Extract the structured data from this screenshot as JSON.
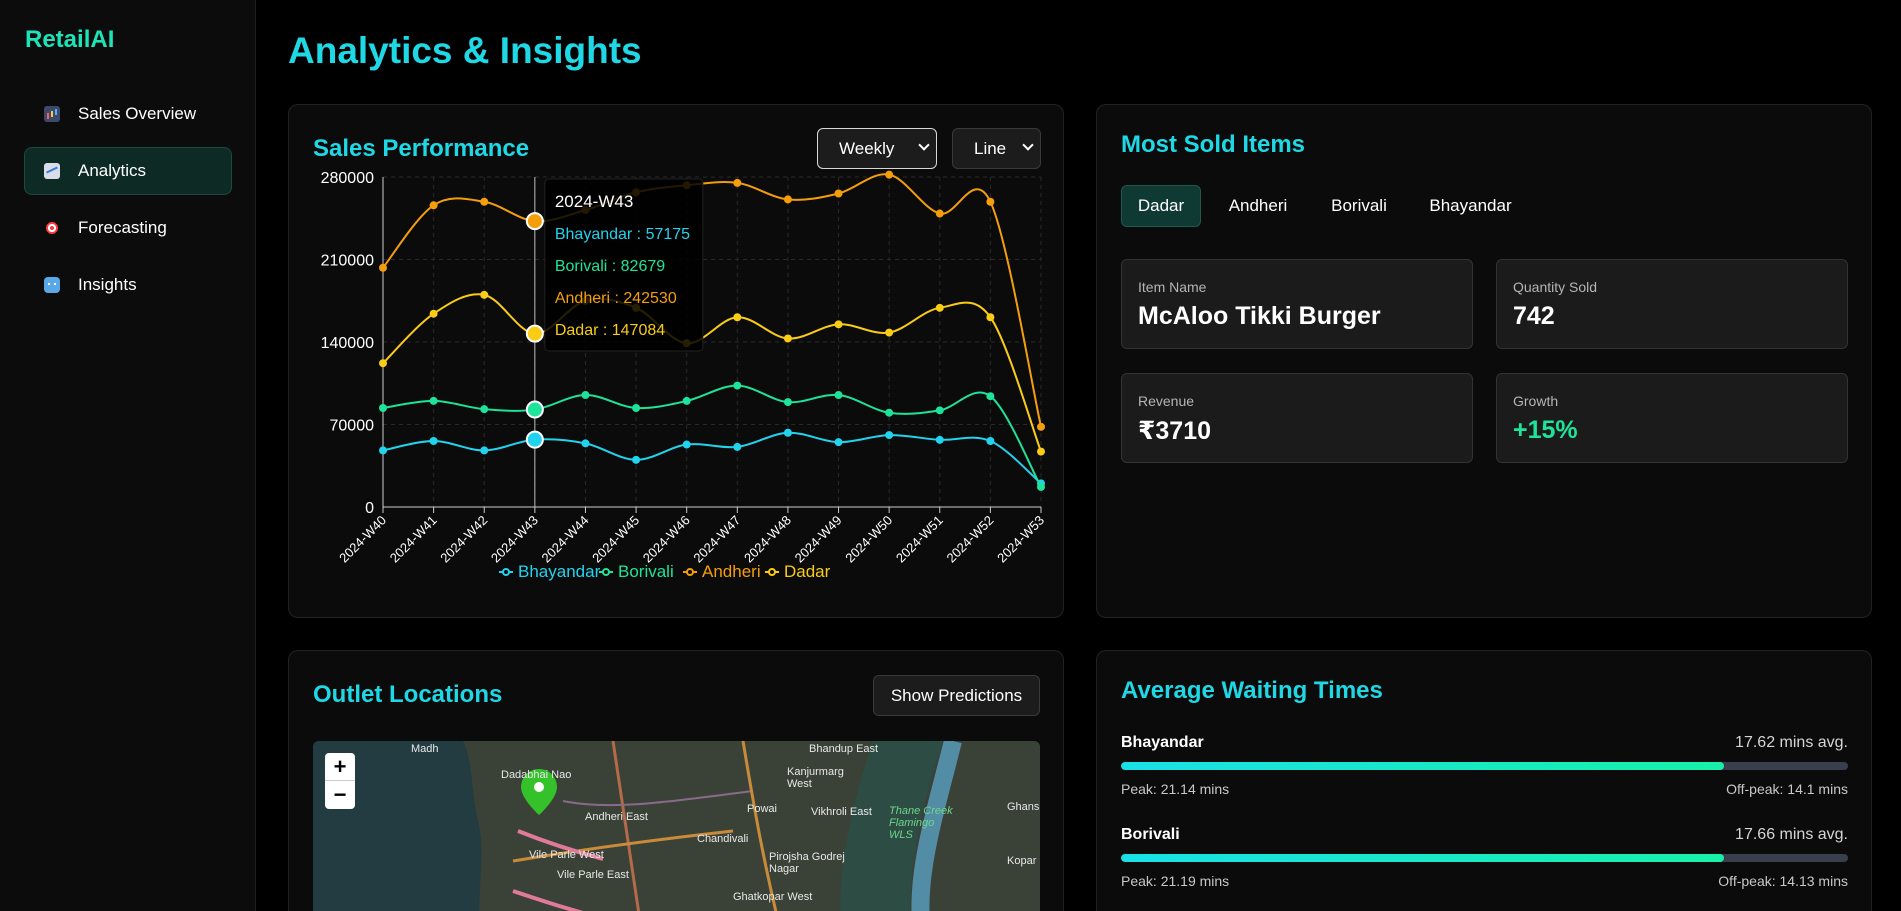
{
  "brand": "RetailAI",
  "nav": [
    {
      "label": "Sales Overview",
      "icon": "bar-chart-icon"
    },
    {
      "label": "Analytics",
      "icon": "line-chart-icon",
      "active": true
    },
    {
      "label": "Forecasting",
      "icon": "target-icon"
    },
    {
      "label": "Insights",
      "icon": "robot-icon"
    }
  ],
  "page_title": "Analytics & Insights",
  "sales": {
    "title": "Sales Performance",
    "period_select": "Weekly",
    "type_select": "Line",
    "tooltip": {
      "title": "2024-W43",
      "lines": [
        "Bhayandar : 57175",
        "Borivali : 82679",
        "Andheri : 242530",
        "Dadar : 147084"
      ]
    }
  },
  "chart_data": {
    "type": "line",
    "categories": [
      "2024-W40",
      "2024-W41",
      "2024-W42",
      "2024-W43",
      "2024-W44",
      "2024-W45",
      "2024-W46",
      "2024-W47",
      "2024-W48",
      "2024-W49",
      "2024-W50",
      "2024-W51",
      "2024-W52",
      "2024-W53"
    ],
    "y_ticks": [
      "0",
      "70000",
      "140000",
      "210000",
      "280000"
    ],
    "ylim": [
      0,
      280000
    ],
    "grid": true,
    "legend_position": "bottom",
    "series": [
      {
        "name": "Bhayandar",
        "color": "#22d3ee",
        "values": [
          48000,
          56000,
          48000,
          57175,
          54000,
          40000,
          53000,
          51000,
          63000,
          55000,
          61000,
          57000,
          56000,
          20000
        ]
      },
      {
        "name": "Borivali",
        "color": "#1ee39a",
        "values": [
          84000,
          90000,
          83000,
          82679,
          95000,
          84000,
          90000,
          103000,
          89000,
          95000,
          80000,
          82000,
          94000,
          17000
        ]
      },
      {
        "name": "Andheri",
        "color": "#f59e0b",
        "values": [
          203000,
          256000,
          259000,
          242530,
          252000,
          267000,
          273000,
          275000,
          261000,
          266000,
          282000,
          249000,
          259000,
          68000
        ]
      },
      {
        "name": "Dadar",
        "color": "#facc15",
        "values": [
          122000,
          164000,
          180000,
          147084,
          175000,
          169000,
          139000,
          161000,
          143000,
          155000,
          148000,
          169000,
          161000,
          47000
        ]
      }
    ]
  },
  "sold": {
    "title": "Most Sold Items",
    "tabs": [
      "Dadar",
      "Andheri",
      "Borivali",
      "Bhayandar"
    ],
    "item_name_label": "Item Name",
    "item_name": "McAloo Tikki Burger",
    "quantity_label": "Quantity Sold",
    "quantity": "742",
    "revenue_label": "Revenue",
    "revenue": "₹3710",
    "growth_label": "Growth",
    "growth": "+15%",
    "growth_color": "#1ee39a"
  },
  "outlet": {
    "title": "Outlet Locations",
    "button": "Show Predictions",
    "zoom_in": "+",
    "zoom_out": "−",
    "map_labels": [
      "Madh",
      "Dadabhai Nao",
      "Andheri East",
      "Vile Parle West",
      "Vile Parle East",
      "Bhandup East",
      "Kanjurmarg West",
      "Powai",
      "Vikhroli East",
      "Chandivali",
      "Pirojsha Godrej Nagar",
      "Thane Creek Flamingo WLS",
      "Ghans",
      "Kopar",
      "Ghatkopar West"
    ]
  },
  "wait": {
    "title": "Average Waiting Times",
    "rows": [
      {
        "name": "Bhayandar",
        "avg": "17.62 mins avg.",
        "fill": 0.83,
        "peak": "Peak: 21.14 mins",
        "off": "Off-peak: 14.1 mins"
      },
      {
        "name": "Borivali",
        "avg": "17.66 mins avg.",
        "fill": 0.83,
        "peak": "Peak: 21.19 mins",
        "off": "Off-peak: 14.13 mins"
      }
    ]
  }
}
